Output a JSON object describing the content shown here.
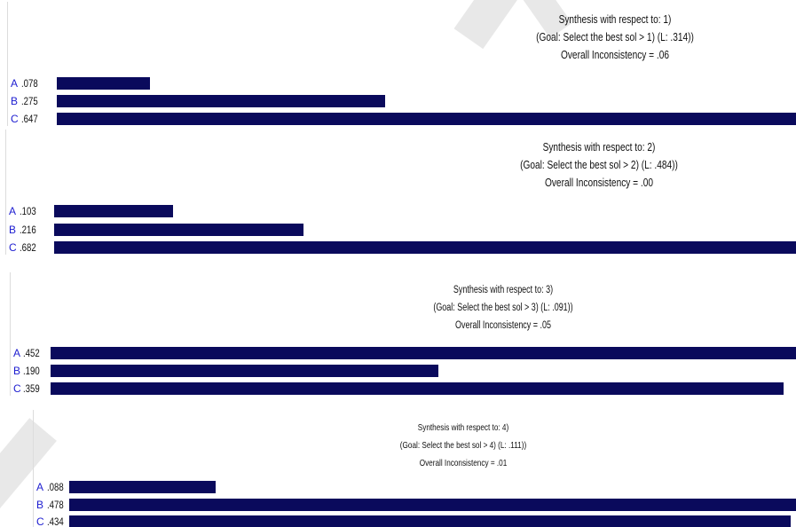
{
  "chart_data": [
    {
      "type": "bar",
      "orientation": "horizontal",
      "title": "Synthesis with respect to: 1)",
      "subtitle": "(Goal: Select the best sol > 1) (L: .314))",
      "note": "Overall Inconsistency = .06",
      "categories": [
        "A",
        "B",
        "C"
      ],
      "values": [
        0.078,
        0.275,
        0.647
      ],
      "value_labels": [
        ".078",
        ".275",
        ".647"
      ]
    },
    {
      "type": "bar",
      "orientation": "horizontal",
      "title": "Synthesis with respect to: 2)",
      "subtitle": "(Goal: Select the best sol > 2) (L: .484))",
      "note": "Overall Inconsistency = .00",
      "categories": [
        "A",
        "B",
        "C"
      ],
      "values": [
        0.103,
        0.216,
        0.682
      ],
      "value_labels": [
        ".103",
        ".216",
        ".682"
      ]
    },
    {
      "type": "bar",
      "orientation": "horizontal",
      "title": "Synthesis with respect to: 3)",
      "subtitle": "(Goal: Select the best sol > 3) (L: .091))",
      "note": "Overall Inconsistency = .05",
      "categories": [
        "A",
        "B",
        "C"
      ],
      "values": [
        0.452,
        0.19,
        0.359
      ],
      "value_labels": [
        ".452",
        ".190",
        ".359"
      ]
    },
    {
      "type": "bar",
      "orientation": "horizontal",
      "title": "Synthesis with respect to: 4)",
      "subtitle": "(Goal: Select the best sol > 4) (L: .111))",
      "note": "Overall Inconsistency = .01",
      "categories": [
        "A",
        "B",
        "C"
      ],
      "values": [
        0.088,
        0.478,
        0.434
      ],
      "value_labels": [
        ".088",
        ".478",
        ".434"
      ]
    }
  ],
  "colors": {
    "bar": "#0a0a5c",
    "category_label": "#1c1cd0",
    "text": "#111111"
  }
}
